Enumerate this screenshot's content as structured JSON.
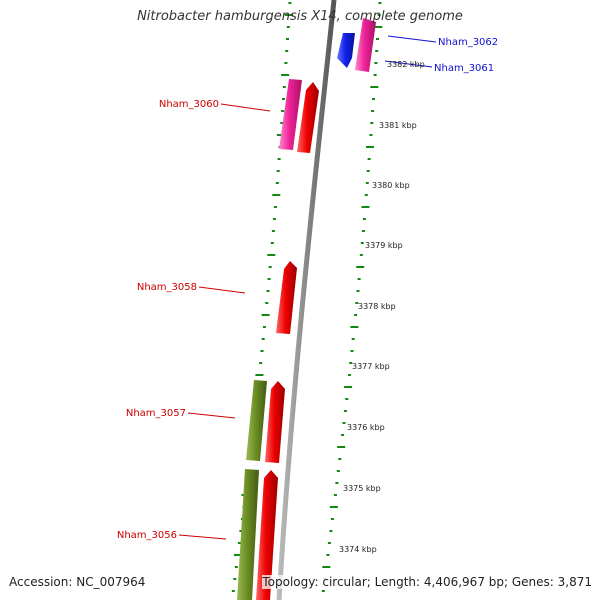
{
  "title": "Nitrobacter hamburgensis X14, complete genome",
  "footer": {
    "accession": "Accession: NC_007964",
    "summary": "Topology: circular; Length: 4,406,967 bp; Genes: 3,871"
  },
  "colors": {
    "forward_gene": "#ee0000",
    "reverse_gene": "#ee2299",
    "other_gene": "#6b8e23",
    "highlight_gene": "#1122ee",
    "label_red": "#cc0000",
    "label_blue": "#1111cc",
    "tick": "#118811",
    "backbone": "#888888"
  },
  "ruler_ticks": [
    "3382 kbp",
    "3381 kbp",
    "3380 kbp",
    "3379 kbp",
    "3378 kbp",
    "3377 kbp",
    "3376 kbp",
    "3375 kbp",
    "3374 kbp"
  ],
  "gene_labels": [
    {
      "id": "nham-3062",
      "text": "Nham_3062",
      "color": "blue"
    },
    {
      "id": "nham-3061",
      "text": "Nham_3061",
      "color": "blue"
    },
    {
      "id": "nham-3060",
      "text": "Nham_3060",
      "color": "red"
    },
    {
      "id": "nham-3058",
      "text": "Nham_3058",
      "color": "red"
    },
    {
      "id": "nham-3057",
      "text": "Nham_3057",
      "color": "red"
    },
    {
      "id": "nham-3056",
      "text": "Nham_3056",
      "color": "red"
    }
  ]
}
